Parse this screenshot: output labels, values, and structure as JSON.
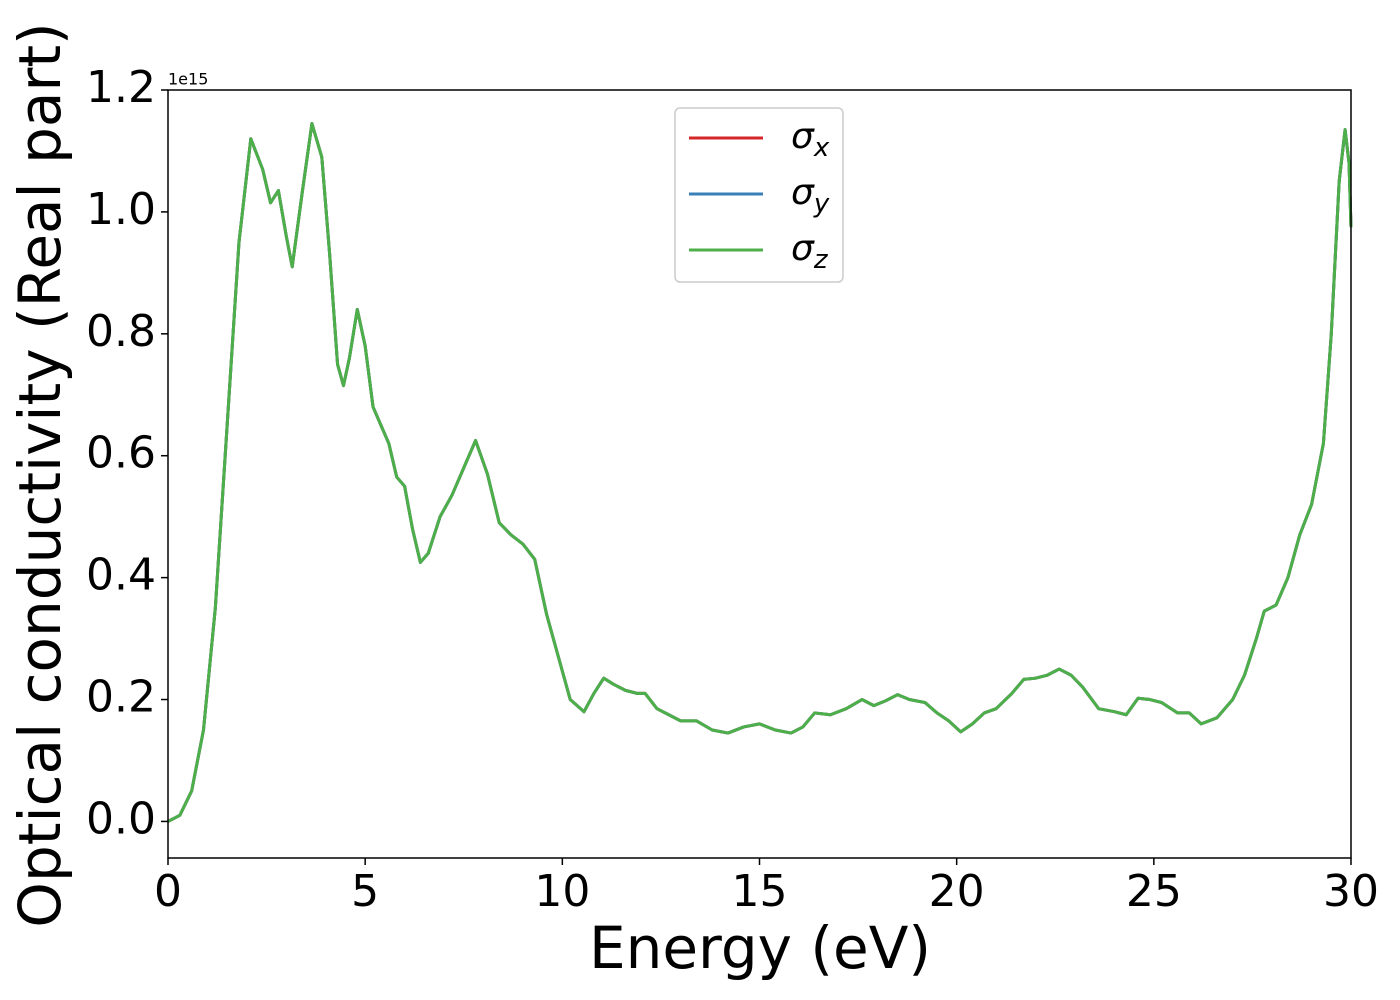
{
  "chart_data": {
    "type": "line",
    "xlabel": "Energy (eV)",
    "ylabel": "Optical conductivity (Real part)",
    "y_offset_label": "1e15",
    "xlim": [
      0,
      30
    ],
    "ylim": [
      -0.06,
      1.2
    ],
    "xticks": [
      0,
      5,
      10,
      15,
      20,
      25,
      30
    ],
    "yticks": [
      {
        "value": 0,
        "label": "0.0"
      },
      0.2,
      0.4,
      0.6,
      0.8,
      {
        "value": 1,
        "label": "1.0"
      },
      1.2
    ],
    "legend": "upper center",
    "x": [
      0,
      0.3,
      0.6,
      0.9,
      1.2,
      1.5,
      1.8,
      2.1,
      2.4,
      2.6,
      2.8,
      3.0,
      3.15,
      3.4,
      3.65,
      3.9,
      4.1,
      4.3,
      4.45,
      4.6,
      4.8,
      5.0,
      5.2,
      5.4,
      5.6,
      5.8,
      6.0,
      6.2,
      6.4,
      6.6,
      6.9,
      7.2,
      7.5,
      7.8,
      8.1,
      8.4,
      8.7,
      9.0,
      9.3,
      9.6,
      9.9,
      10.2,
      10.55,
      10.8,
      11.05,
      11.3,
      11.6,
      11.9,
      12.1,
      12.4,
      12.7,
      13.0,
      13.4,
      13.8,
      14.2,
      14.6,
      15.0,
      15.4,
      15.8,
      16.1,
      16.4,
      16.8,
      17.2,
      17.6,
      17.9,
      18.2,
      18.5,
      18.8,
      19.2,
      19.5,
      19.8,
      20.1,
      20.4,
      20.7,
      21.0,
      21.4,
      21.7,
      22.0,
      22.3,
      22.6,
      22.9,
      23.2,
      23.6,
      24.0,
      24.3,
      24.6,
      24.9,
      25.2,
      25.6,
      25.9,
      26.2,
      26.6,
      27.0,
      27.3,
      27.6,
      27.8,
      28.1,
      28.4,
      28.7,
      29.0,
      29.3,
      29.5,
      29.7,
      29.85,
      29.95,
      30.0
    ],
    "series": [
      {
        "name": "σx",
        "color": "#d62728",
        "values": [
          0,
          0.01,
          0.05,
          0.15,
          0.35,
          0.65,
          0.95,
          1.12,
          1.07,
          1.015,
          1.035,
          0.96,
          0.91,
          1.03,
          1.145,
          1.09,
          0.93,
          0.75,
          0.715,
          0.76,
          0.84,
          0.78,
          0.68,
          0.65,
          0.62,
          0.565,
          0.55,
          0.48,
          0.425,
          0.44,
          0.5,
          0.535,
          0.58,
          0.625,
          0.57,
          0.49,
          0.47,
          0.455,
          0.43,
          0.34,
          0.27,
          0.2,
          0.18,
          0.21,
          0.235,
          0.225,
          0.215,
          0.21,
          0.21,
          0.185,
          0.175,
          0.165,
          0.165,
          0.15,
          0.145,
          0.155,
          0.16,
          0.15,
          0.145,
          0.155,
          0.178,
          0.175,
          0.185,
          0.2,
          0.19,
          0.198,
          0.208,
          0.2,
          0.195,
          0.178,
          0.165,
          0.147,
          0.16,
          0.178,
          0.185,
          0.21,
          0.233,
          0.235,
          0.24,
          0.25,
          0.24,
          0.22,
          0.185,
          0.18,
          0.175,
          0.202,
          0.2,
          0.195,
          0.178,
          0.178,
          0.16,
          0.17,
          0.2,
          0.24,
          0.3,
          0.345,
          0.355,
          0.4,
          0.47,
          0.52,
          0.62,
          0.8,
          1.05,
          1.135,
          1.08,
          0.975
        ]
      },
      {
        "name": "σy",
        "color": "#3a7fb8",
        "values": [
          0,
          0.01,
          0.05,
          0.15,
          0.35,
          0.65,
          0.95,
          1.12,
          1.07,
          1.015,
          1.035,
          0.96,
          0.91,
          1.03,
          1.145,
          1.09,
          0.93,
          0.75,
          0.715,
          0.76,
          0.84,
          0.78,
          0.68,
          0.65,
          0.62,
          0.565,
          0.55,
          0.48,
          0.425,
          0.44,
          0.5,
          0.535,
          0.58,
          0.625,
          0.57,
          0.49,
          0.47,
          0.455,
          0.43,
          0.34,
          0.27,
          0.2,
          0.18,
          0.21,
          0.235,
          0.225,
          0.215,
          0.21,
          0.21,
          0.185,
          0.175,
          0.165,
          0.165,
          0.15,
          0.145,
          0.155,
          0.16,
          0.15,
          0.145,
          0.155,
          0.178,
          0.175,
          0.185,
          0.2,
          0.19,
          0.198,
          0.208,
          0.2,
          0.195,
          0.178,
          0.165,
          0.147,
          0.16,
          0.178,
          0.185,
          0.21,
          0.233,
          0.235,
          0.24,
          0.25,
          0.24,
          0.22,
          0.185,
          0.18,
          0.175,
          0.202,
          0.2,
          0.195,
          0.178,
          0.178,
          0.16,
          0.17,
          0.2,
          0.24,
          0.3,
          0.345,
          0.355,
          0.4,
          0.47,
          0.52,
          0.62,
          0.8,
          1.05,
          1.135,
          1.08,
          0.975
        ]
      },
      {
        "name": "σz",
        "color": "#4daf4a",
        "values": [
          0,
          0.01,
          0.05,
          0.15,
          0.35,
          0.65,
          0.95,
          1.12,
          1.07,
          1.015,
          1.035,
          0.96,
          0.91,
          1.03,
          1.145,
          1.09,
          0.93,
          0.75,
          0.715,
          0.76,
          0.84,
          0.78,
          0.68,
          0.65,
          0.62,
          0.565,
          0.55,
          0.48,
          0.425,
          0.44,
          0.5,
          0.535,
          0.58,
          0.625,
          0.57,
          0.49,
          0.47,
          0.455,
          0.43,
          0.34,
          0.27,
          0.2,
          0.18,
          0.21,
          0.235,
          0.225,
          0.215,
          0.21,
          0.21,
          0.185,
          0.175,
          0.165,
          0.165,
          0.15,
          0.145,
          0.155,
          0.16,
          0.15,
          0.145,
          0.155,
          0.178,
          0.175,
          0.185,
          0.2,
          0.19,
          0.198,
          0.208,
          0.2,
          0.195,
          0.178,
          0.165,
          0.147,
          0.16,
          0.178,
          0.185,
          0.21,
          0.233,
          0.235,
          0.24,
          0.25,
          0.24,
          0.22,
          0.185,
          0.18,
          0.175,
          0.202,
          0.2,
          0.195,
          0.178,
          0.178,
          0.16,
          0.17,
          0.2,
          0.24,
          0.3,
          0.345,
          0.355,
          0.4,
          0.47,
          0.52,
          0.62,
          0.8,
          1.05,
          1.135,
          1.08,
          0.975
        ]
      }
    ]
  }
}
